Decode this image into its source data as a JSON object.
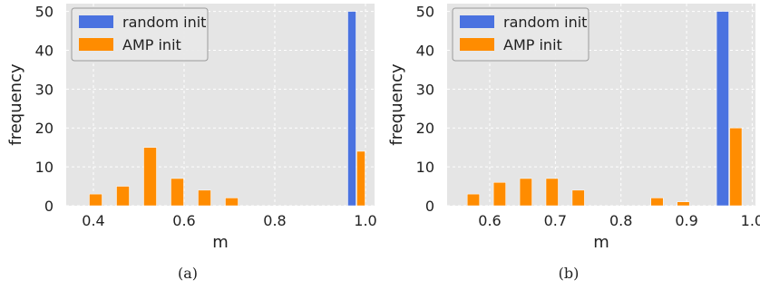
{
  "chart_data": [
    {
      "panel_label": "(a)",
      "type": "bar",
      "xlabel": "m",
      "ylabel": "frequency",
      "xlim": [
        0.34,
        1.02
      ],
      "ylim": [
        0,
        52
      ],
      "xticks": [
        "0.4",
        "0.6",
        "0.8",
        "1.0"
      ],
      "yticks": [
        "0",
        "10",
        "20",
        "30",
        "40",
        "50"
      ],
      "grid": true,
      "legend": "top-left",
      "bin_edges": [
        0.36,
        0.42,
        0.48,
        0.54,
        0.6,
        0.66,
        0.72,
        0.78,
        0.84,
        0.9,
        0.96,
        1.0
      ],
      "series": [
        {
          "name": "random init",
          "color": "#4a72e0",
          "values": [
            0,
            0,
            0,
            0,
            0,
            0,
            0,
            0,
            0,
            0,
            50
          ]
        },
        {
          "name": "AMP init",
          "color": "#ff8c00",
          "values": [
            3,
            5,
            15,
            7,
            4,
            2,
            0,
            0,
            0,
            0,
            14
          ]
        }
      ]
    },
    {
      "panel_label": "(b)",
      "type": "bar",
      "xlabel": "m",
      "ylabel": "frequency",
      "xlim": [
        0.535,
        1.005
      ],
      "ylim": [
        0,
        52
      ],
      "xticks": [
        "0.6",
        "0.7",
        "0.8",
        "0.9",
        "1.0"
      ],
      "yticks": [
        "0",
        "10",
        "20",
        "30",
        "40",
        "50"
      ],
      "grid": true,
      "legend": "top-left",
      "bin_edges": [
        0.545,
        0.585,
        0.625,
        0.665,
        0.705,
        0.745,
        0.785,
        0.825,
        0.865,
        0.905,
        0.945,
        0.985
      ],
      "series": [
        {
          "name": "random init",
          "color": "#4a72e0",
          "values": [
            0,
            0,
            0,
            0,
            0,
            0,
            0,
            0,
            0,
            0,
            50
          ]
        },
        {
          "name": "AMP init",
          "color": "#ff8c00",
          "values": [
            3,
            6,
            7,
            7,
            4,
            0,
            0,
            2,
            1,
            0,
            20
          ]
        }
      ]
    }
  ]
}
